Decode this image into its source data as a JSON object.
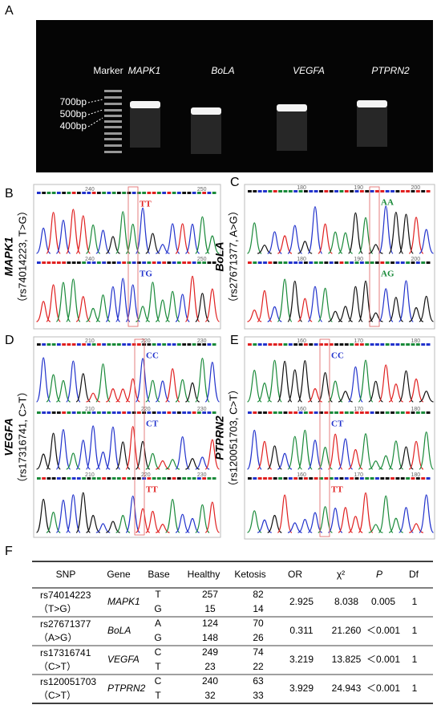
{
  "panel_a": {
    "label": "A",
    "lanes": [
      "Marker",
      "MAPK1",
      "BoLA",
      "VEGFA",
      "PTPRN2"
    ],
    "markers": [
      "700bp",
      "500bp",
      "400bp"
    ]
  },
  "panels": [
    {
      "label": "B",
      "gene": "MAPK1",
      "snp": "（rs74014223, T>G）",
      "positions": [
        "240",
        "250"
      ],
      "traces": [
        {
          "genotype": "TT",
          "color": "#e02020"
        },
        {
          "genotype": "TG",
          "color": "#2233cc"
        }
      ]
    },
    {
      "label": "C",
      "gene": "BoLA",
      "snp": "（rs27671377, A>G）",
      "positions": [
        "180",
        "190",
        "200"
      ],
      "traces": [
        {
          "genotype": "AA",
          "color": "#1a8a3a"
        },
        {
          "genotype": "AG",
          "color": "#1a8a3a"
        }
      ]
    },
    {
      "label": "D",
      "gene": "VEGFA",
      "snp": "（rs17316741, C>T）",
      "positions": [
        "210",
        "220",
        "230"
      ],
      "traces": [
        {
          "genotype": "CC",
          "color": "#2233cc"
        },
        {
          "genotype": "CT",
          "color": "#2233cc"
        },
        {
          "genotype": "TT",
          "color": "#e02020"
        }
      ]
    },
    {
      "label": "E",
      "gene": "PTPRN2",
      "snp": "（rs120051703, C>T）",
      "positions": [
        "160",
        "170",
        "180"
      ],
      "traces": [
        {
          "genotype": "CC",
          "color": "#2233cc"
        },
        {
          "genotype": "CT",
          "color": "#2233cc"
        },
        {
          "genotype": "TT",
          "color": "#e02020"
        }
      ]
    }
  ],
  "table": {
    "label": "F",
    "header": [
      "SNP",
      "Gene",
      "Base",
      "Healthy",
      "Ketosis",
      "OR",
      "χ²",
      "P",
      "Df"
    ],
    "rows": [
      {
        "snp": "rs74014223",
        "change": "（T>G）",
        "gene": "MAPK1",
        "alleles": [
          {
            "base": "T",
            "healthy": "257",
            "ketosis": "82"
          },
          {
            "base": "G",
            "healthy": "15",
            "ketosis": "14"
          }
        ],
        "or": "2.925",
        "chi2": "8.038",
        "p": "0.005",
        "df": "1"
      },
      {
        "snp": "rs27671377",
        "change": "（A>G）",
        "gene": "BoLA",
        "alleles": [
          {
            "base": "A",
            "healthy": "124",
            "ketosis": "70"
          },
          {
            "base": "G",
            "healthy": "148",
            "ketosis": "26"
          }
        ],
        "or": "0.311",
        "chi2": "21.260",
        "p": "＜0.001",
        "df": "1"
      },
      {
        "snp": "rs17316741",
        "change": "（C>T）",
        "gene": "VEGFA",
        "alleles": [
          {
            "base": "C",
            "healthy": "249",
            "ketosis": "74"
          },
          {
            "base": "T",
            "healthy": "23",
            "ketosis": "22"
          }
        ],
        "or": "3.219",
        "chi2": "13.825",
        "p": "＜0.001",
        "df": "1"
      },
      {
        "snp": "rs120051703",
        "change": "（C>T）",
        "gene": "PTPRN2",
        "alleles": [
          {
            "base": "C",
            "healthy": "240",
            "ketosis": "63"
          },
          {
            "base": "T",
            "healthy": "32",
            "ketosis": "33"
          }
        ],
        "or": "3.929",
        "chi2": "24.943",
        "p": "＜0.001",
        "df": "1"
      }
    ]
  }
}
